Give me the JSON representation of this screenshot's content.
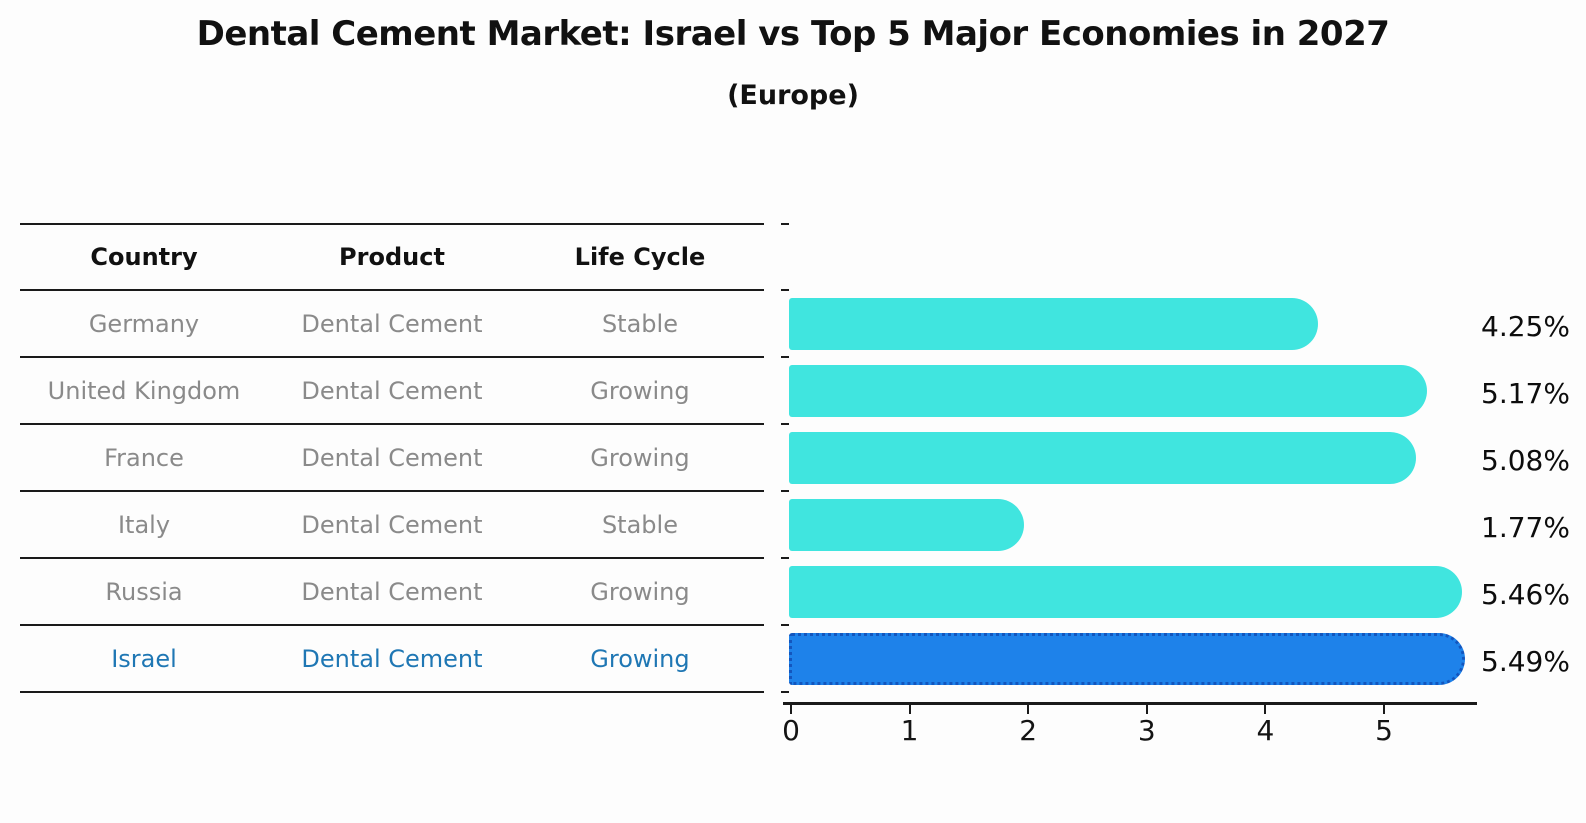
{
  "title": "Dental Cement Market: Israel vs Top 5 Major Economies in 2027",
  "subtitle": "(Europe)",
  "table": {
    "headers": [
      "Country",
      "Product",
      "Life Cycle"
    ],
    "rows": [
      {
        "country": "Germany",
        "product": "Dental Cement",
        "life_cycle": "Stable",
        "highlight": false
      },
      {
        "country": "United Kingdom",
        "product": "Dental Cement",
        "life_cycle": "Growing",
        "highlight": false
      },
      {
        "country": "France",
        "product": "Dental Cement",
        "life_cycle": "Growing",
        "highlight": false
      },
      {
        "country": "Italy",
        "product": "Dental Cement",
        "life_cycle": "Stable",
        "highlight": false
      },
      {
        "country": "Russia",
        "product": "Dental Cement",
        "life_cycle": "Growing",
        "highlight": false
      },
      {
        "country": "Israel",
        "product": "Dental Cement",
        "life_cycle": "Growing",
        "highlight": true
      }
    ]
  },
  "chart_data": {
    "type": "bar",
    "orientation": "horizontal",
    "title": "Dental Cement Market: Israel vs Top 5 Major Economies in 2027",
    "subtitle": "(Europe)",
    "categories": [
      "Germany",
      "United Kingdom",
      "France",
      "Italy",
      "Russia",
      "Israel"
    ],
    "values": [
      4.25,
      5.17,
      5.08,
      1.77,
      5.46,
      5.49
    ],
    "value_labels": [
      "4.25%",
      "5.17%",
      "5.08%",
      "1.77%",
      "5.46%",
      "5.49%"
    ],
    "x_ticks": [
      0,
      1,
      2,
      3,
      4,
      5
    ],
    "xlim": [
      0,
      5.8
    ],
    "grid": false,
    "legend": false,
    "highlight_index": 5,
    "bar_color": "#40E5DF",
    "highlight_bar_color": "#1E82EA",
    "highlight_text_color": "#1F77B4"
  },
  "colors": {
    "background": "#FDFDFD",
    "bar": "#40E5DF",
    "highlight_bar": "#1E82EA",
    "highlight_border": "#1356BE",
    "row_text": "#8A8A8A",
    "header_text": "#111111",
    "highlight_text": "#1F77B4",
    "line": "#1A1A1A"
  }
}
